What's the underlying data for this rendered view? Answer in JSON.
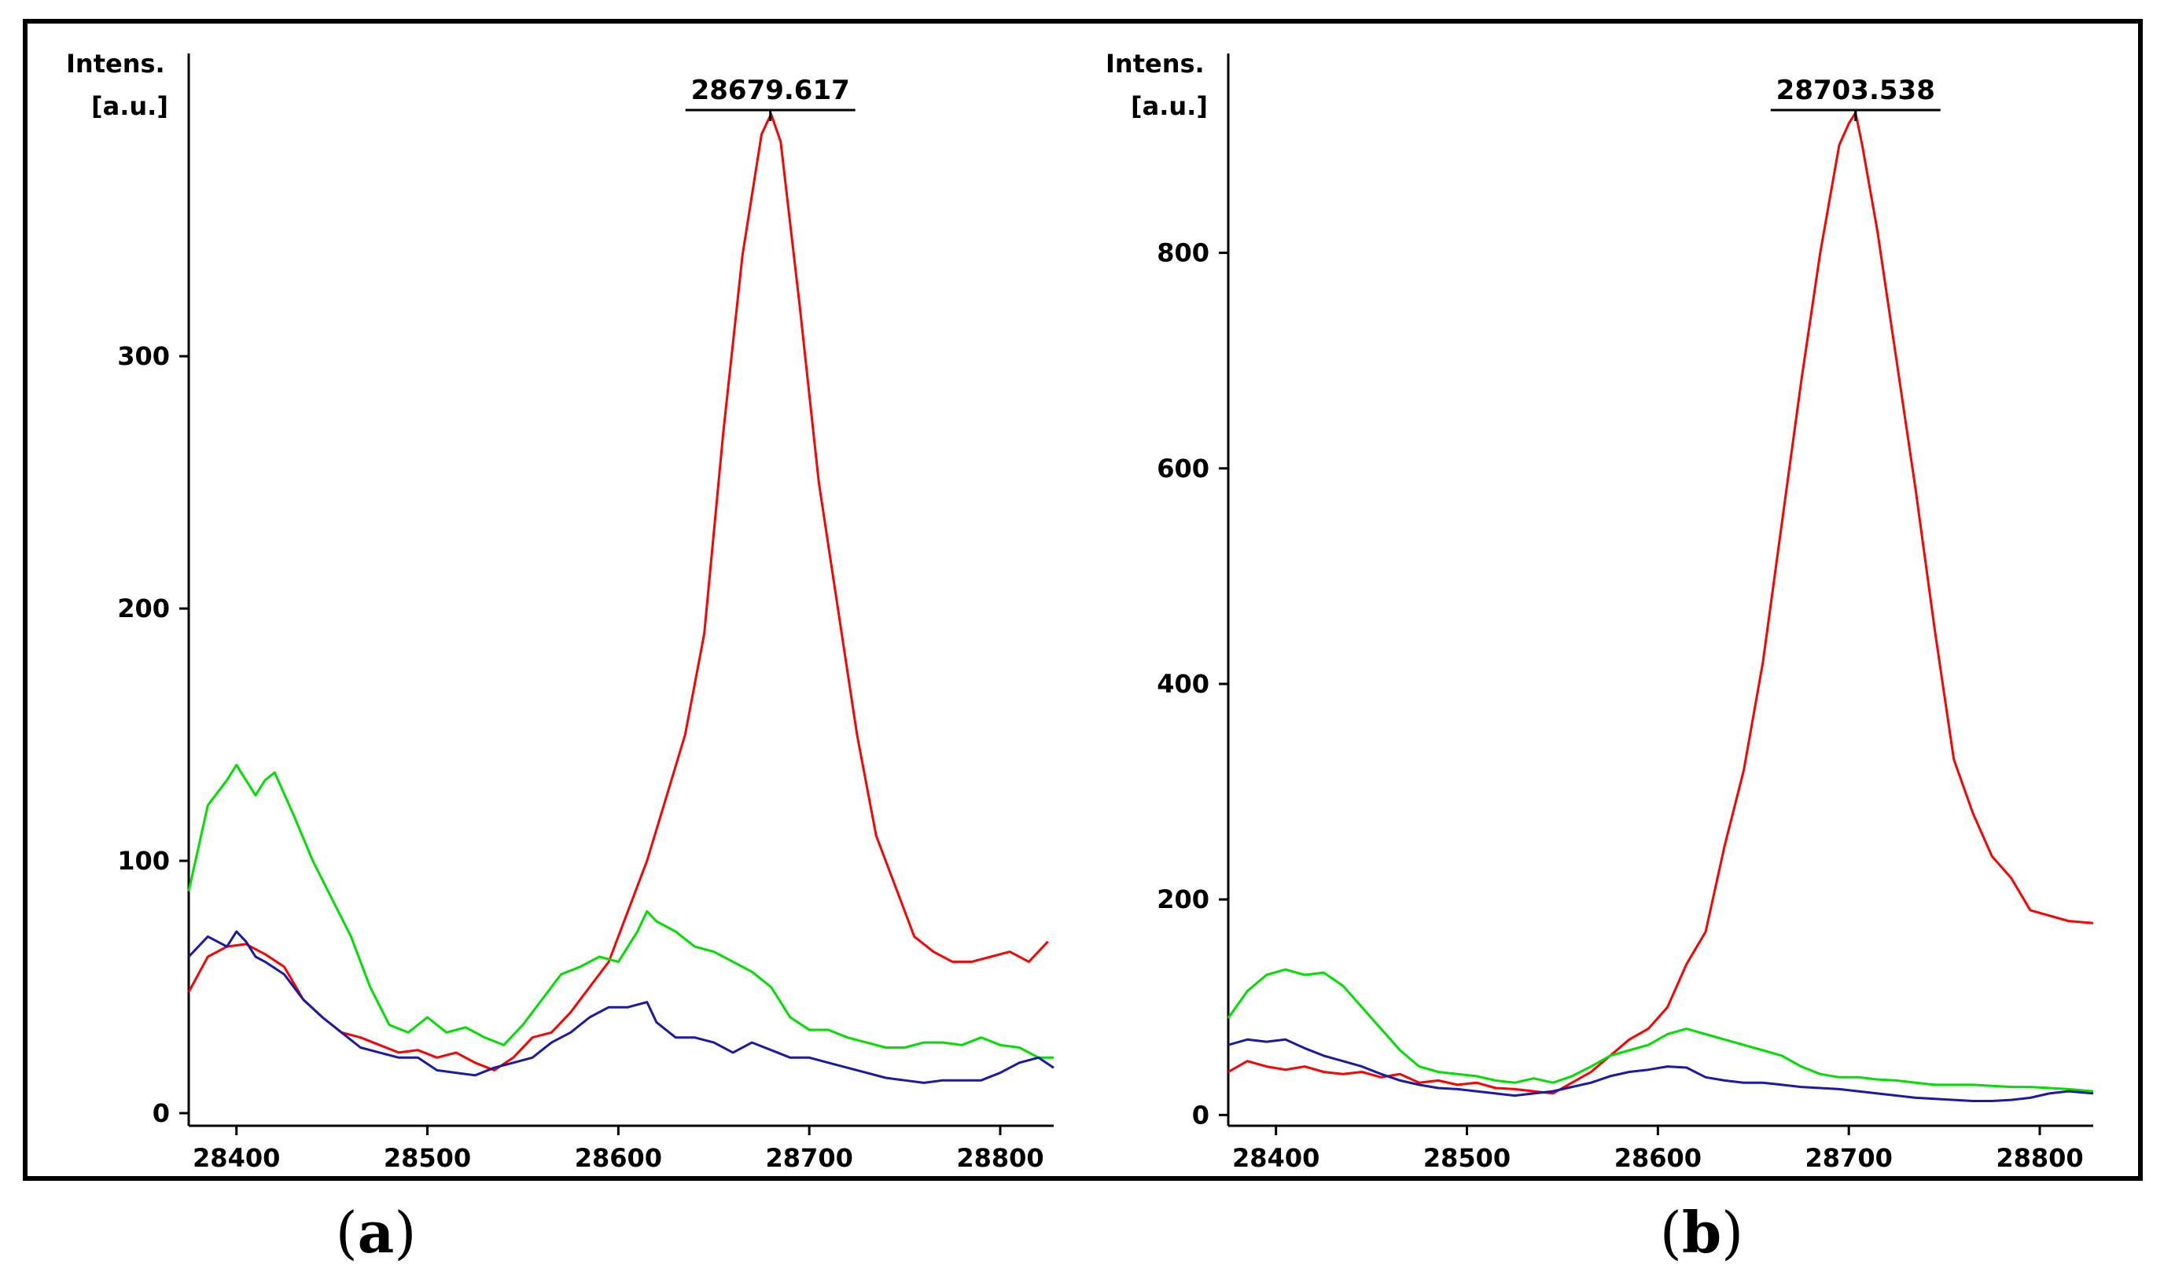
{
  "figure": {
    "frame_color": "#000000"
  },
  "chart_data": [
    {
      "type": "line",
      "panel_label": "a",
      "ylabel_line1": "Intens.",
      "ylabel_line2": "[a.u.]",
      "xlim": [
        28375,
        28828
      ],
      "ylim": [
        -5,
        420
      ],
      "xticks": [
        28400,
        28500,
        28600,
        28700,
        28800
      ],
      "yticks": [
        0,
        100,
        200,
        300
      ],
      "peak": {
        "label": "28679.617",
        "x": 28679.617,
        "y": 396
      },
      "series": [
        {
          "name": "red",
          "color": "#ff0000",
          "x": [
            28375,
            28385,
            28395,
            28405,
            28415,
            28425,
            28435,
            28445,
            28455,
            28465,
            28475,
            28485,
            28495,
            28505,
            28515,
            28525,
            28535,
            28545,
            28555,
            28565,
            28575,
            28585,
            28595,
            28605,
            28615,
            28625,
            28635,
            28645,
            28655,
            28665,
            28675,
            28680,
            28685,
            28695,
            28705,
            28715,
            28725,
            28735,
            28745,
            28755,
            28765,
            28775,
            28785,
            28795,
            28805,
            28815,
            28825
          ],
          "y": [
            48,
            62,
            66,
            67,
            63,
            58,
            45,
            38,
            32,
            30,
            27,
            24,
            25,
            22,
            24,
            20,
            17,
            22,
            30,
            32,
            40,
            50,
            60,
            80,
            100,
            125,
            150,
            190,
            270,
            340,
            388,
            396,
            385,
            320,
            250,
            200,
            150,
            110,
            90,
            70,
            64,
            60,
            60,
            62,
            64,
            60,
            68
          ]
        },
        {
          "name": "green",
          "color": "#00e000",
          "x": [
            28375,
            28385,
            28395,
            28400,
            28405,
            28410,
            28415,
            28420,
            28430,
            28440,
            28450,
            28460,
            28470,
            28480,
            28490,
            28500,
            28510,
            28520,
            28530,
            28540,
            28550,
            28560,
            28570,
            28580,
            28590,
            28600,
            28610,
            28615,
            28620,
            28630,
            28640,
            28650,
            28660,
            28670,
            28680,
            28690,
            28700,
            28710,
            28720,
            28730,
            28740,
            28750,
            28760,
            28770,
            28780,
            28790,
            28800,
            28810,
            28820,
            28828
          ],
          "y": [
            88,
            122,
            132,
            138,
            132,
            126,
            132,
            135,
            118,
            100,
            85,
            70,
            50,
            35,
            32,
            38,
            32,
            34,
            30,
            27,
            35,
            45,
            55,
            58,
            62,
            60,
            72,
            80,
            76,
            72,
            66,
            64,
            60,
            56,
            50,
            38,
            33,
            33,
            30,
            28,
            26,
            26,
            28,
            28,
            27,
            30,
            27,
            26,
            22,
            22
          ]
        },
        {
          "name": "blue",
          "color": "#1a1aa8",
          "x": [
            28375,
            28385,
            28395,
            28400,
            28405,
            28410,
            28415,
            28425,
            28435,
            28445,
            28455,
            28465,
            28475,
            28485,
            28495,
            28505,
            28515,
            28525,
            28535,
            28545,
            28555,
            28565,
            28575,
            28585,
            28595,
            28605,
            28615,
            28620,
            28630,
            28640,
            28650,
            28660,
            28670,
            28680,
            28690,
            28700,
            28710,
            28720,
            28730,
            28740,
            28750,
            28760,
            28770,
            28780,
            28790,
            28800,
            28810,
            28820,
            28828
          ],
          "y": [
            62,
            70,
            66,
            72,
            68,
            62,
            60,
            55,
            45,
            38,
            32,
            26,
            24,
            22,
            22,
            17,
            16,
            15,
            18,
            20,
            22,
            28,
            32,
            38,
            42,
            42,
            44,
            36,
            30,
            30,
            28,
            24,
            28,
            25,
            22,
            22,
            20,
            18,
            16,
            14,
            13,
            12,
            13,
            13,
            13,
            16,
            20,
            22,
            18
          ]
        }
      ]
    },
    {
      "type": "line",
      "panel_label": "b",
      "ylabel_line1": "Intens.",
      "ylabel_line2": "[a.u.]",
      "xlim": [
        28375,
        28828
      ],
      "ylim": [
        -10,
        985
      ],
      "xticks": [
        28400,
        28500,
        28600,
        28700,
        28800
      ],
      "yticks": [
        0,
        200,
        400,
        600,
        800
      ],
      "peak": {
        "label": "28703.538",
        "x": 28703.538,
        "y": 930
      },
      "series": [
        {
          "name": "red",
          "color": "#ff0000",
          "x": [
            28375,
            28385,
            28395,
            28405,
            28415,
            28425,
            28435,
            28445,
            28455,
            28465,
            28475,
            28485,
            28495,
            28505,
            28515,
            28525,
            28535,
            28545,
            28555,
            28565,
            28575,
            28585,
            28595,
            28605,
            28615,
            28625,
            28635,
            28645,
            28655,
            28665,
            28675,
            28685,
            28695,
            28700,
            28703.5,
            28707,
            28715,
            28725,
            28735,
            28745,
            28755,
            28765,
            28775,
            28785,
            28795,
            28805,
            28815,
            28828
          ],
          "y": [
            40,
            50,
            45,
            42,
            45,
            40,
            38,
            40,
            35,
            38,
            30,
            32,
            28,
            30,
            25,
            24,
            22,
            20,
            30,
            40,
            55,
            70,
            80,
            100,
            140,
            170,
            250,
            320,
            420,
            550,
            680,
            800,
            900,
            920,
            930,
            900,
            820,
            700,
            580,
            450,
            330,
            280,
            240,
            220,
            190,
            185,
            180,
            178
          ]
        },
        {
          "name": "green",
          "color": "#00e000",
          "x": [
            28375,
            28385,
            28395,
            28405,
            28415,
            28425,
            28435,
            28445,
            28455,
            28465,
            28475,
            28485,
            28495,
            28505,
            28515,
            28525,
            28535,
            28545,
            28555,
            28565,
            28575,
            28585,
            28595,
            28605,
            28615,
            28625,
            28635,
            28645,
            28655,
            28665,
            28675,
            28685,
            28695,
            28705,
            28715,
            28725,
            28735,
            28745,
            28755,
            28765,
            28775,
            28785,
            28795,
            28805,
            28815,
            28828
          ],
          "y": [
            90,
            115,
            130,
            135,
            130,
            132,
            120,
            100,
            80,
            60,
            45,
            40,
            38,
            36,
            32,
            30,
            34,
            30,
            36,
            45,
            55,
            60,
            65,
            75,
            80,
            75,
            70,
            65,
            60,
            55,
            45,
            38,
            35,
            35,
            33,
            32,
            30,
            28,
            28,
            28,
            27,
            26,
            26,
            25,
            24,
            22
          ]
        },
        {
          "name": "blue",
          "color": "#1a1aa8",
          "x": [
            28375,
            28385,
            28395,
            28405,
            28415,
            28425,
            28435,
            28445,
            28455,
            28465,
            28475,
            28485,
            28495,
            28505,
            28515,
            28525,
            28535,
            28545,
            28555,
            28565,
            28575,
            28585,
            28595,
            28605,
            28615,
            28625,
            28635,
            28645,
            28655,
            28665,
            28675,
            28685,
            28695,
            28705,
            28715,
            28725,
            28735,
            28745,
            28755,
            28765,
            28775,
            28785,
            28795,
            28805,
            28815,
            28828
          ],
          "y": [
            65,
            70,
            68,
            70,
            62,
            55,
            50,
            45,
            38,
            32,
            28,
            25,
            24,
            22,
            20,
            18,
            20,
            22,
            26,
            30,
            36,
            40,
            42,
            45,
            44,
            35,
            32,
            30,
            30,
            28,
            26,
            25,
            24,
            22,
            20,
            18,
            16,
            15,
            14,
            13,
            13,
            14,
            16,
            20,
            22,
            20
          ]
        }
      ]
    }
  ]
}
